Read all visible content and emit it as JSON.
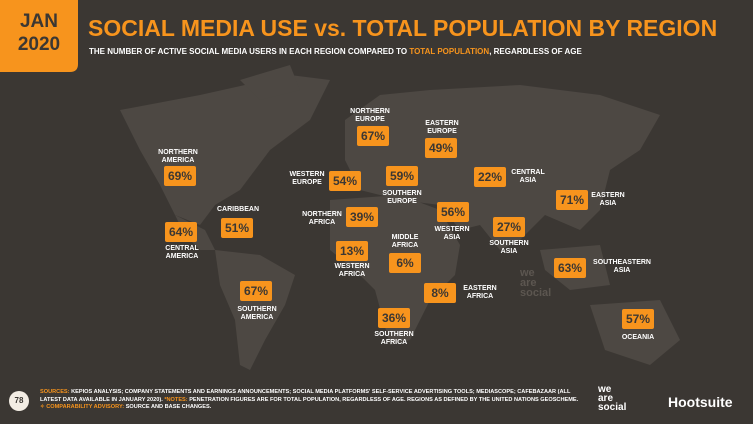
{
  "header": {
    "month": "JAN",
    "year": "2020",
    "title": "SOCIAL MEDIA USE vs. TOTAL POPULATION BY REGION",
    "subtitle_before": "THE NUMBER OF ACTIVE SOCIAL MEDIA USERS IN EACH REGION COMPARED TO ",
    "subtitle_highlight": "TOTAL POPULATION",
    "subtitle_after": ", REGARDLESS OF AGE"
  },
  "regions": [
    {
      "name": "NORTHERN\nAMERICA",
      "value": "69%"
    },
    {
      "name": "CENTRAL\nAMERICA",
      "value": "64%"
    },
    {
      "name": "CARIBBEAN",
      "value": "51%"
    },
    {
      "name": "SOUTHERN\nAMERICA",
      "value": "67%"
    },
    {
      "name": "NORTHERN\nEUROPE",
      "value": "67%"
    },
    {
      "name": "WESTERN\nEUROPE",
      "value": "54%"
    },
    {
      "name": "SOUTHERN\nEUROPE",
      "value": "59%"
    },
    {
      "name": "NORTHERN\nAFRICA",
      "value": "39%"
    },
    {
      "name": "WESTERN\nAFRICA",
      "value": "13%"
    },
    {
      "name": "MIDDLE\nAFRICA",
      "value": "6%"
    },
    {
      "name": "EASTERN\nEUROPE",
      "value": "49%"
    },
    {
      "name": "WESTERN\nASIA",
      "value": "56%"
    },
    {
      "name": "CENTRAL\nASIA",
      "value": "22%"
    },
    {
      "name": "SOUTHERN\nASIA",
      "value": "27%"
    },
    {
      "name": "EASTERN\nAFRICA",
      "value": "8%"
    },
    {
      "name": "SOUTHERN\nAFRICA",
      "value": "36%"
    },
    {
      "name": "EASTERN\nASIA",
      "value": "71%"
    },
    {
      "name": "SOUTHEASTERN\nASIA",
      "value": "63%"
    },
    {
      "name": "OCEANIA",
      "value": "57%"
    }
  ],
  "watermark": "we\nare\nsocial",
  "footer": {
    "page": "78",
    "sources_label": "SOURCES:",
    "sources_text": " KEPIOS ANALYSIS; COMPANY STATEMENTS AND EARNINGS ANNOUNCEMENTS; SOCIAL MEDIA PLATFORMS' SELF-SERVICE ADVERTISING TOOLS; MEDIASCOPE; CAFEBAZAAR (ALL LATEST DATA AVAILABLE IN JANUARY 2020). ",
    "notes_label": "*NOTES:",
    "notes_text": " PENETRATION FIGURES ARE FOR TOTAL POPULATION, REGARDLESS OF AGE. REGIONS AS DEFINED BY THE UNITED NATIONS GEOSCHEME.",
    "advisory_label": "✧ COMPARABILITY ADVISORY:",
    "advisory_text": " SOURCE AND BASE CHANGES.",
    "logo_was": "we\nare\nsocial",
    "logo_hootsuite": "Hootsuite"
  }
}
